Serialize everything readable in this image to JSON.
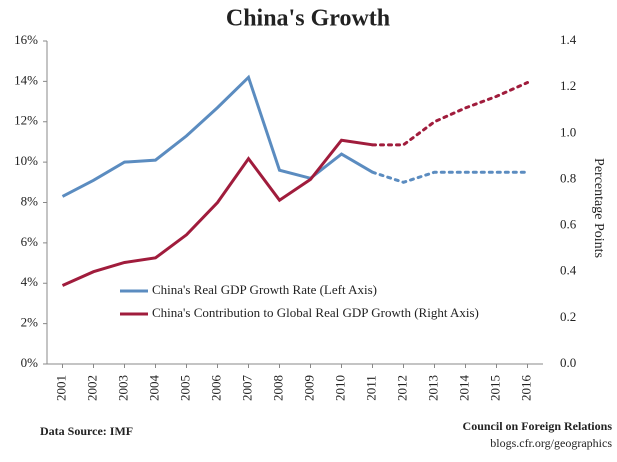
{
  "chart_data": {
    "type": "line",
    "title": "China's Growth",
    "y2_label": "Percentage Points",
    "source": "Data Source: IMF",
    "credit": "Council on Foreign Relations",
    "credit_url": "blogs.cfr.org/geographics",
    "categories": [
      "2001",
      "2002",
      "2003",
      "2004",
      "2005",
      "2006",
      "2007",
      "2008",
      "2009",
      "2010",
      "2011",
      "2012",
      "2013",
      "2014",
      "2015",
      "2016"
    ],
    "projected_from": "2011",
    "series": [
      {
        "name": "China's Real GDP Growth Rate (Left Axis)",
        "color": "#5b8cc0",
        "axis": "y",
        "values": [
          8.3,
          9.1,
          10.0,
          10.1,
          11.3,
          12.7,
          14.2,
          9.6,
          9.2,
          10.4,
          9.5,
          9.0,
          9.5,
          9.5,
          9.5,
          9.5
        ]
      },
      {
        "name": "China's Contribution to Global Real GDP Growth (Right Axis)",
        "color": "#a01c3c",
        "axis": "y2",
        "values": [
          0.34,
          0.4,
          0.44,
          0.46,
          0.56,
          0.7,
          0.89,
          0.71,
          0.8,
          0.97,
          0.95,
          0.95,
          1.05,
          1.11,
          1.16,
          1.22
        ]
      }
    ],
    "ylim": [
      0,
      16
    ],
    "yticks": [
      {
        "value": 0,
        "label": "0%"
      },
      {
        "value": 2,
        "label": "2%"
      },
      {
        "value": 4,
        "label": "4%"
      },
      {
        "value": 6,
        "label": "6%"
      },
      {
        "value": 8,
        "label": "8%"
      },
      {
        "value": 10,
        "label": "10%"
      },
      {
        "value": 12,
        "label": "12%"
      },
      {
        "value": 14,
        "label": "14%"
      },
      {
        "value": 16,
        "label": "16%"
      }
    ],
    "y2lim": [
      0,
      1.4
    ],
    "y2ticks": [
      {
        "value": 0,
        "label": "0.0"
      },
      {
        "value": 0.2,
        "label": "0.2"
      },
      {
        "value": 0.4,
        "label": "0.4"
      },
      {
        "value": 0.6,
        "label": "0.6"
      },
      {
        "value": 0.8,
        "label": "0.8"
      },
      {
        "value": 1,
        "label": "1.0"
      },
      {
        "value": 1.2,
        "label": "1.2"
      },
      {
        "value": 1.4,
        "label": "1.4"
      }
    ]
  }
}
